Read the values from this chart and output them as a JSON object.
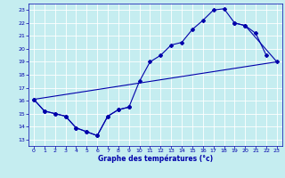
{
  "xlabel": "Graphe des températures (°c)",
  "xlim": [
    -0.5,
    23.5
  ],
  "ylim": [
    12.5,
    23.5
  ],
  "xticks": [
    0,
    1,
    2,
    3,
    4,
    5,
    6,
    7,
    8,
    9,
    10,
    11,
    12,
    13,
    14,
    15,
    16,
    17,
    18,
    19,
    20,
    21,
    22,
    23
  ],
  "yticks": [
    13,
    14,
    15,
    16,
    17,
    18,
    19,
    20,
    21,
    22,
    23
  ],
  "bg_color": "#c5edf0",
  "line_color": "#0000aa",
  "grid_color": "#ffffff",
  "curve1_x": [
    0,
    1,
    2,
    3,
    4,
    5,
    6,
    7,
    8,
    9,
    10,
    11,
    12,
    13,
    14,
    15,
    16,
    17,
    18,
    19,
    20,
    21,
    22
  ],
  "curve1_y": [
    16.1,
    15.2,
    15.0,
    14.8,
    13.9,
    13.6,
    13.3,
    14.8,
    15.3,
    15.5,
    17.5,
    19.0,
    19.5,
    20.3,
    20.5,
    21.5,
    22.2,
    23.0,
    23.1,
    22.0,
    21.8,
    21.2,
    19.5
  ],
  "curve2_x": [
    0,
    1,
    2,
    3,
    4,
    5,
    6,
    7,
    8,
    9,
    19,
    20,
    23
  ],
  "curve2_y": [
    16.1,
    15.2,
    15.0,
    14.8,
    13.9,
    13.6,
    13.3,
    14.8,
    15.3,
    15.5,
    22.0,
    21.8,
    19.0
  ],
  "curve3_x": [
    0,
    23
  ],
  "curve3_y": [
    16.1,
    19.0
  ]
}
